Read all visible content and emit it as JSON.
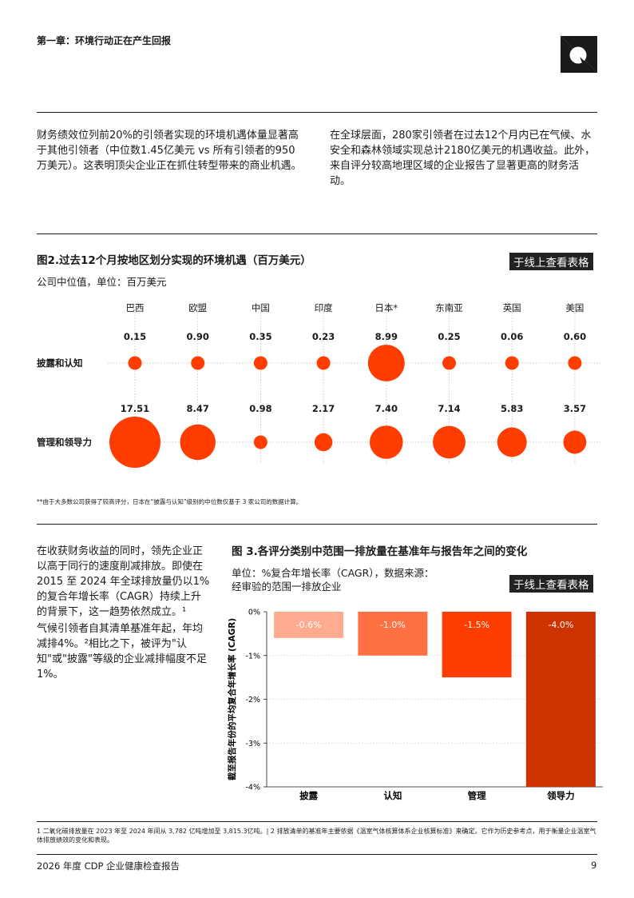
{
  "header": {
    "chapter": "第一章：环境行动正在产生回报"
  },
  "intro": {
    "left": "财务绩效位列前20%的引领者实现的环境机遇体量显著高于其他引领者（中位数1.45亿美元 vs 所有引领者的950万美元）。这表明顶尖企业正在抓住转型带来的商业机遇。",
    "right": "在全球层面，280家引领者在过去12个月内已在气候、水安全和森林领域实现总计2180亿美元的机遇收益。此外，来自评分较高地理区域的企业报告了显著更高的财务活动。"
  },
  "figure2": {
    "title": "图2.过去12个月按地区划分实现的环境机遇（百万美元）",
    "unit": "公司中位值，单位：百万美元",
    "online": "于线上查看表格",
    "note": "**由于大多数公司获得了较高评分，日本在“披露与认知”级别的中位数仅基于 3 家公司的数据计算。",
    "color": "#ff3d00"
  },
  "chart_data": [
    {
      "type": "scatter",
      "title": "图2.过去12个月按地区划分实现的环境机遇（百万美元）",
      "subtitle": "公司中位值，单位：百万美元",
      "categories": [
        "巴西",
        "欧盟",
        "中国",
        "印度",
        "日本*",
        "东南亚",
        "英国",
        "美国"
      ],
      "series": [
        {
          "name": "披露和认知",
          "values": [
            0.15,
            0.9,
            0.35,
            0.23,
            8.99,
            0.25,
            0.06,
            0.6
          ],
          "labels": [
            "0.15",
            "0.90",
            "0.35",
            "0.23",
            "8.99",
            "0.25",
            "0.06",
            "0.60"
          ]
        },
        {
          "name": "管理和领导力",
          "values": [
            17.51,
            8.47,
            0.98,
            2.17,
            7.4,
            7.14,
            5.83,
            3.57
          ],
          "labels": [
            "17.51",
            "8.47",
            "0.98",
            "2.17",
            "7.40",
            "7.14",
            "5.83",
            "3.57"
          ]
        }
      ]
    },
    {
      "type": "bar",
      "title": "图 3.各评分类别中范围一排放量在基准年与报告年之间的变化",
      "subtitle": "单位：%复合年增长率（CAGR），数据来源：经审验的范围一排放企业",
      "ylabel": "截至报告年份的平均复合年增长率 (CAGR)",
      "categories": [
        "披露",
        "认知",
        "管理",
        "领导力"
      ],
      "values": [
        -0.6,
        -1.0,
        -1.5,
        -4.0
      ],
      "labels": [
        "-0.6%",
        "-1.0%",
        "-1.5%",
        "-4.0%"
      ],
      "colors": [
        "#ffab91",
        "#ff7043",
        "#ff3d00",
        "#cc3300"
      ],
      "ylim": [
        -4,
        0
      ],
      "yticks": [
        0,
        -1,
        -2,
        -3,
        -4
      ],
      "yticklabels": [
        "0%",
        "-1%",
        "-2%",
        "-3%",
        "-4%"
      ]
    }
  ],
  "body": {
    "p1": "在收获财务收益的同时，领先企业正以高于同行的速度削减排放。即使在 2015 至 2024 年全球排放量仍以1%的复合年增长率（CAGR）持续上升的背景下，这一趋势依然成立。¹",
    "p2": "气候引领者自其清单基准年起，年均减排4%。²相比之下，被评为\"认知\"或\"披露\"等级的企业减排幅度不足1%。"
  },
  "figure3": {
    "title": "图 3.各评分类别中范围一排放量在基准年与报告年之间的变化",
    "unit": "单位：%复合年增长率（CAGR），数据来源：经审验的范围一排放企业",
    "online": "于线上查看表格"
  },
  "footnotes": "1 二氧化碳排放量在 2023 年至 2024 年间从 3,782 亿吨增加至 3,815.3亿吨。| 2 排放清单的基准年主要依据《温室气体核算体系企业核算标准》来确定。它作为历史参考点，用于衡量企业温室气体排放绩效的变化和表现。",
  "footer": {
    "report": "2026 年度 CDP 企业健康检查报告",
    "page": "9"
  }
}
